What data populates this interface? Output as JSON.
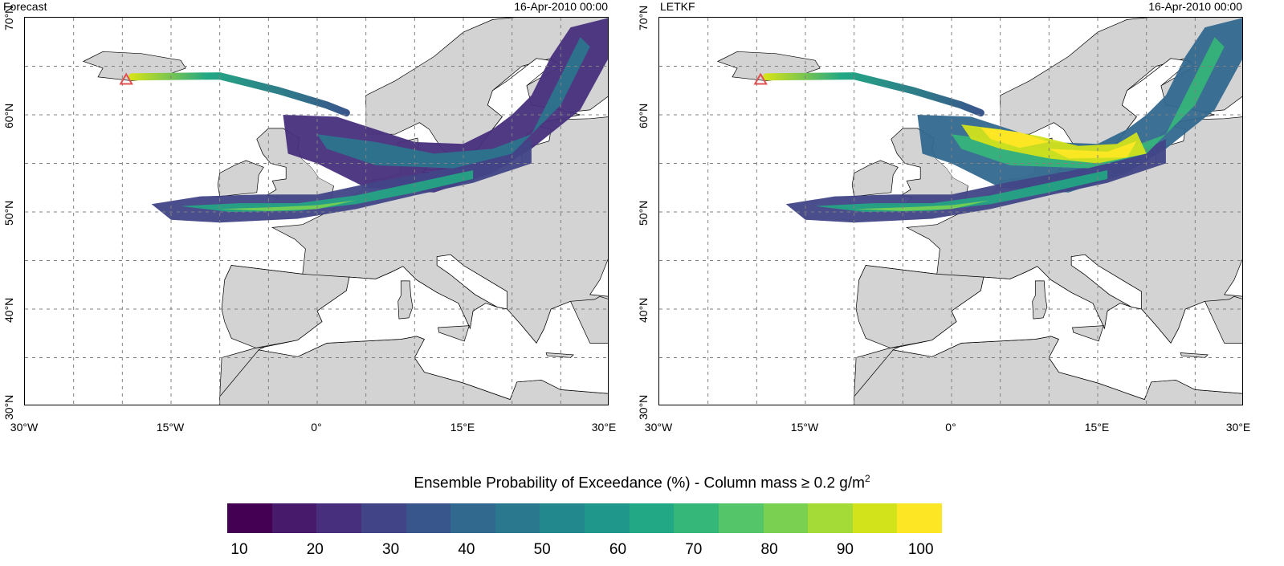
{
  "panels": [
    {
      "title": "Forecast",
      "date": "16-Apr-2010 00:00",
      "lat_labels": [
        "70°N",
        "60°N",
        "50°N",
        "40°N",
        "30°N"
      ],
      "lon_labels": [
        "30°W",
        "15°W",
        "0°",
        "15°E",
        "30°E"
      ],
      "plume_strength": "forecast"
    },
    {
      "title": "LETKF",
      "date": "16-Apr-2010 00:00",
      "lat_labels": [
        "70°N",
        "60°N",
        "50°N",
        "40°N",
        "30°N"
      ],
      "lon_labels": [
        "30°W",
        "15°W",
        "0°",
        "15°E",
        "30°E"
      ],
      "plume_strength": "letkf"
    }
  ],
  "colorbar": {
    "title_main": "Ensemble Probability of Exceedance (%) - Column mass ≥ 0.2 g/m",
    "title_sup": "2",
    "labels": [
      "10",
      "20",
      "30",
      "40",
      "50",
      "60",
      "70",
      "80",
      "90",
      "100"
    ],
    "colors": [
      "#440154",
      "#481a6c",
      "#472f7d",
      "#414487",
      "#39568c",
      "#31688e",
      "#2a788e",
      "#23888e",
      "#1f988b",
      "#22a884",
      "#35b779",
      "#54c568",
      "#7ad151",
      "#a5db36",
      "#d2e21b",
      "#fde725"
    ]
  },
  "colors": {
    "land": "#d3d3d3",
    "ocean": "#ffffff",
    "volcano_marker": "#e05050",
    "grid": "#808080"
  },
  "icons": {
    "volcano": "triangle-marker-icon"
  }
}
